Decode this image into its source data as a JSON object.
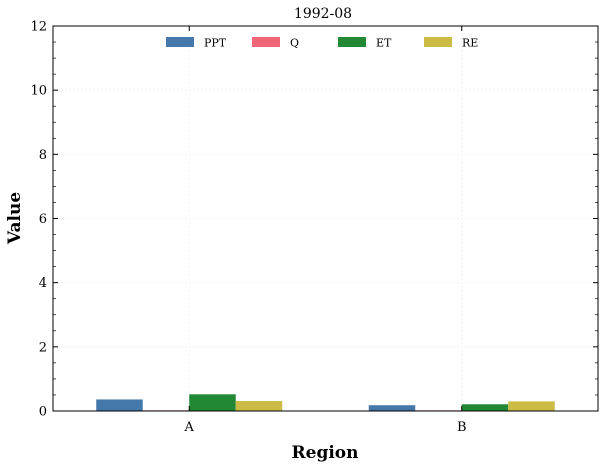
{
  "chart_data": {
    "type": "bar",
    "title": "1992-08",
    "xlabel": "Region",
    "ylabel": "Value",
    "categories": [
      "A",
      "B"
    ],
    "series": [
      {
        "name": "PPT",
        "values": [
          0.36,
          0.18
        ],
        "color": "#4477AA"
      },
      {
        "name": "Q",
        "values": [
          0.02,
          0.02
        ],
        "color": "#EE6677"
      },
      {
        "name": "ET",
        "values": [
          0.52,
          0.21
        ],
        "color": "#228833"
      },
      {
        "name": "RE",
        "values": [
          0.31,
          0.3
        ],
        "color": "#CCBB44"
      }
    ],
    "ylim": [
      0,
      12
    ],
    "yticks": [
      "0",
      "2",
      "4",
      "6",
      "8",
      "10",
      "12"
    ],
    "grid": true,
    "legend_position": "top-center"
  }
}
